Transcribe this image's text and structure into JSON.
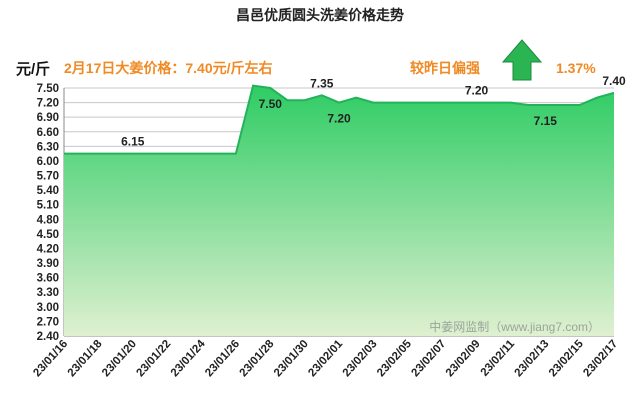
{
  "chart_data": {
    "type": "area",
    "title": "昌邑优质圆头洗姜价格走势",
    "ylabel": "元/斤",
    "ylim": [
      2.4,
      7.5
    ],
    "yticks": [
      2.4,
      2.7,
      3.0,
      3.3,
      3.6,
      3.9,
      4.2,
      4.5,
      4.8,
      5.1,
      5.4,
      5.7,
      6.0,
      6.3,
      6.6,
      6.9,
      7.2,
      7.5
    ],
    "x_tick_labels": [
      "23/01/16",
      "23/01/18",
      "23/01/20",
      "23/01/22",
      "23/01/24",
      "23/01/26",
      "23/01/28",
      "23/01/30",
      "23/02/01",
      "23/02/03",
      "23/02/05",
      "23/02/07",
      "23/02/09",
      "23/02/11",
      "23/02/13",
      "23/02/15",
      "23/02/17"
    ],
    "x": [
      "23/01/16",
      "23/01/17",
      "23/01/18",
      "23/01/19",
      "23/01/20",
      "23/01/21",
      "23/01/22",
      "23/01/23",
      "23/01/24",
      "23/01/25",
      "23/01/26",
      "23/01/27",
      "23/01/28",
      "23/01/29",
      "23/01/30",
      "23/01/31",
      "23/02/01",
      "23/02/02",
      "23/02/03",
      "23/02/04",
      "23/02/05",
      "23/02/06",
      "23/02/07",
      "23/02/08",
      "23/02/09",
      "23/02/10",
      "23/02/11",
      "23/02/12",
      "23/02/13",
      "23/02/14",
      "23/02/15",
      "23/02/16",
      "23/02/17"
    ],
    "values": [
      6.15,
      6.15,
      6.15,
      6.15,
      6.15,
      6.15,
      6.15,
      6.15,
      6.15,
      6.15,
      6.15,
      7.55,
      7.5,
      7.25,
      7.25,
      7.35,
      7.2,
      7.3,
      7.2,
      7.2,
      7.2,
      7.2,
      7.2,
      7.2,
      7.2,
      7.2,
      7.2,
      7.15,
      7.15,
      7.15,
      7.15,
      7.3,
      7.4
    ],
    "data_labels": [
      {
        "x": "23/01/20",
        "value": 6.15,
        "text": "6.15",
        "pos": "above"
      },
      {
        "x": "23/01/28",
        "value": 7.5,
        "text": "7.50",
        "pos": "below"
      },
      {
        "x": "23/01/31",
        "value": 7.35,
        "text": "7.35",
        "pos": "above"
      },
      {
        "x": "23/02/01",
        "value": 7.2,
        "text": "7.20",
        "pos": "below"
      },
      {
        "x": "23/02/09",
        "value": 7.2,
        "text": "7.20",
        "pos": "above"
      },
      {
        "x": "23/02/13",
        "value": 7.15,
        "text": "7.15",
        "pos": "below"
      },
      {
        "x": "23/02/17",
        "value": 7.4,
        "text": "7.40",
        "pos": "above"
      }
    ],
    "grid": true,
    "colors": {
      "line": "#23b25a",
      "fill_top": "#2ecc64",
      "fill_bottom": "#dff0d0",
      "grid": "#c8c8c8"
    }
  },
  "headline": {
    "price_text": "2月17日大姜价格：7.40元/斤左右",
    "compare_label": "较昨日偏强",
    "change_pct": "1.37%",
    "trend": "up",
    "trend_icon": "up-arrow-icon",
    "accent_color": "#f08a24"
  },
  "watermark": "中姜网监制（www.jiang7.com）"
}
